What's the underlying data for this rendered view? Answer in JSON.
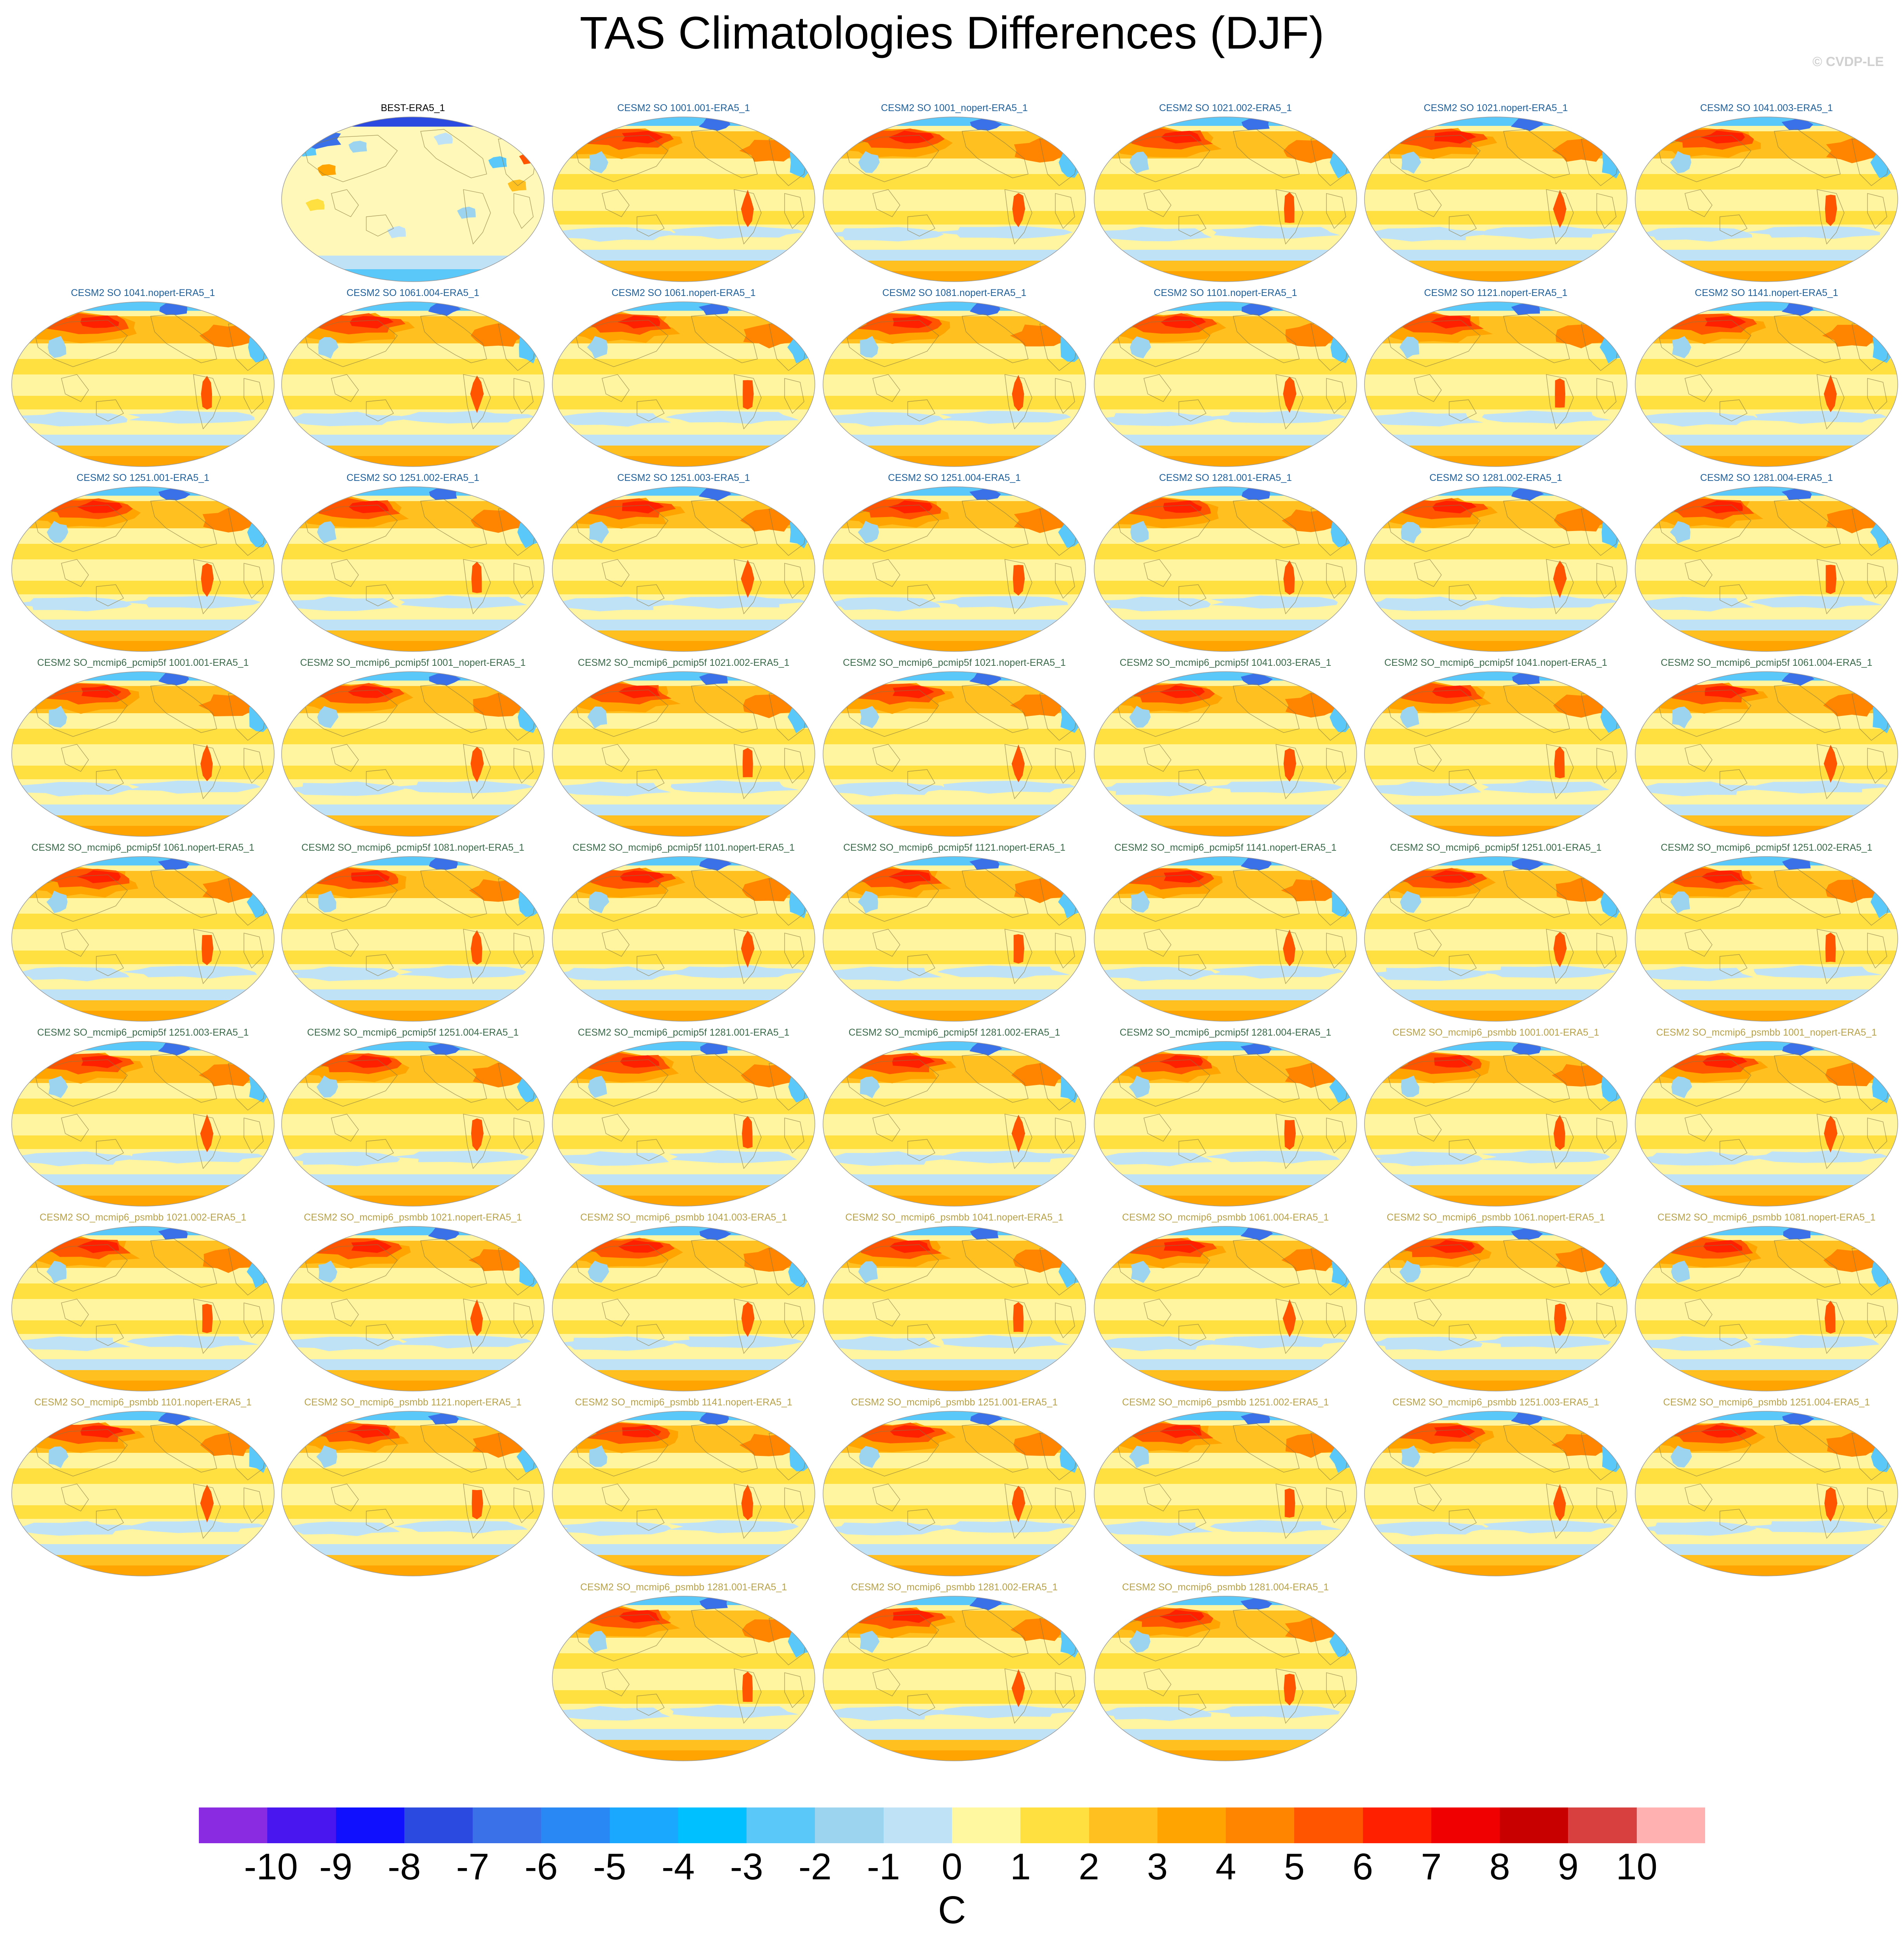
{
  "title": "TAS Climatologies Differences (DJF)",
  "credit": "© CVDP-LE",
  "colors": {
    "obs_title": "#000000",
    "group1_title": "#1f5f9a",
    "group2_title": "#3a6a4a",
    "group3_title": "#b7a24a",
    "ocean_base": "#fff5a0",
    "land_outline": "#8a7a40"
  },
  "panels": [
    {
      "title": "BEST-ERA5_1",
      "group": 0
    },
    {
      "title": "CESM2 SO 1001.001-ERA5_1",
      "group": 1
    },
    {
      "title": "CESM2 SO 1001_nopert-ERA5_1",
      "group": 1
    },
    {
      "title": "CESM2 SO 1021.002-ERA5_1",
      "group": 1
    },
    {
      "title": "CESM2 SO 1021.nopert-ERA5_1",
      "group": 1
    },
    {
      "title": "CESM2 SO 1041.003-ERA5_1",
      "group": 1
    },
    {
      "title": "CESM2 SO 1041.nopert-ERA5_1",
      "group": 1
    },
    {
      "title": "CESM2 SO 1061.004-ERA5_1",
      "group": 1
    },
    {
      "title": "CESM2 SO 1061.nopert-ERA5_1",
      "group": 1
    },
    {
      "title": "CESM2 SO 1081.nopert-ERA5_1",
      "group": 1
    },
    {
      "title": "CESM2 SO 1101.nopert-ERA5_1",
      "group": 1
    },
    {
      "title": "CESM2 SO 1121.nopert-ERA5_1",
      "group": 1
    },
    {
      "title": "CESM2 SO 1141.nopert-ERA5_1",
      "group": 1
    },
    {
      "title": "CESM2 SO 1251.001-ERA5_1",
      "group": 1
    },
    {
      "title": "CESM2 SO 1251.002-ERA5_1",
      "group": 1
    },
    {
      "title": "CESM2 SO 1251.003-ERA5_1",
      "group": 1
    },
    {
      "title": "CESM2 SO 1251.004-ERA5_1",
      "group": 1
    },
    {
      "title": "CESM2 SO 1281.001-ERA5_1",
      "group": 1
    },
    {
      "title": "CESM2 SO 1281.002-ERA5_1",
      "group": 1
    },
    {
      "title": "CESM2 SO 1281.004-ERA5_1",
      "group": 1
    },
    {
      "title": "CESM2 SO_mcmip6_pcmip5f 1001.001-ERA5_1",
      "group": 2
    },
    {
      "title": "CESM2 SO_mcmip6_pcmip5f 1001_nopert-ERA5_1",
      "group": 2
    },
    {
      "title": "CESM2 SO_mcmip6_pcmip5f 1021.002-ERA5_1",
      "group": 2
    },
    {
      "title": "CESM2 SO_mcmip6_pcmip5f 1021.nopert-ERA5_1",
      "group": 2
    },
    {
      "title": "CESM2 SO_mcmip6_pcmip5f 1041.003-ERA5_1",
      "group": 2
    },
    {
      "title": "CESM2 SO_mcmip6_pcmip5f 1041.nopert-ERA5_1",
      "group": 2
    },
    {
      "title": "CESM2 SO_mcmip6_pcmip5f 1061.004-ERA5_1",
      "group": 2
    },
    {
      "title": "CESM2 SO_mcmip6_pcmip5f 1061.nopert-ERA5_1",
      "group": 2
    },
    {
      "title": "CESM2 SO_mcmip6_pcmip5f 1081.nopert-ERA5_1",
      "group": 2
    },
    {
      "title": "CESM2 SO_mcmip6_pcmip5f 1101.nopert-ERA5_1",
      "group": 2
    },
    {
      "title": "CESM2 SO_mcmip6_pcmip5f 1121.nopert-ERA5_1",
      "group": 2
    },
    {
      "title": "CESM2 SO_mcmip6_pcmip5f 1141.nopert-ERA5_1",
      "group": 2
    },
    {
      "title": "CESM2 SO_mcmip6_pcmip5f 1251.001-ERA5_1",
      "group": 2
    },
    {
      "title": "CESM2 SO_mcmip6_pcmip5f 1251.002-ERA5_1",
      "group": 2
    },
    {
      "title": "CESM2 SO_mcmip6_pcmip5f 1251.003-ERA5_1",
      "group": 2
    },
    {
      "title": "CESM2 SO_mcmip6_pcmip5f 1251.004-ERA5_1",
      "group": 2
    },
    {
      "title": "CESM2 SO_mcmip6_pcmip5f 1281.001-ERA5_1",
      "group": 2
    },
    {
      "title": "CESM2 SO_mcmip6_pcmip5f 1281.002-ERA5_1",
      "group": 2
    },
    {
      "title": "CESM2 SO_mcmip6_pcmip5f 1281.004-ERA5_1",
      "group": 2
    },
    {
      "title": "CESM2 SO_mcmip6_psmbb 1001.001-ERA5_1",
      "group": 3
    },
    {
      "title": "CESM2 SO_mcmip6_psmbb 1001_nopert-ERA5_1",
      "group": 3
    },
    {
      "title": "CESM2 SO_mcmip6_psmbb 1021.002-ERA5_1",
      "group": 3
    },
    {
      "title": "CESM2 SO_mcmip6_psmbb 1021.nopert-ERA5_1",
      "group": 3
    },
    {
      "title": "CESM2 SO_mcmip6_psmbb 1041.003-ERA5_1",
      "group": 3
    },
    {
      "title": "CESM2 SO_mcmip6_psmbb 1041.nopert-ERA5_1",
      "group": 3
    },
    {
      "title": "CESM2 SO_mcmip6_psmbb 1061.004-ERA5_1",
      "group": 3
    },
    {
      "title": "CESM2 SO_mcmip6_psmbb 1061.nopert-ERA5_1",
      "group": 3
    },
    {
      "title": "CESM2 SO_mcmip6_psmbb 1081.nopert-ERA5_1",
      "group": 3
    },
    {
      "title": "CESM2 SO_mcmip6_psmbb 1101.nopert-ERA5_1",
      "group": 3
    },
    {
      "title": "CESM2 SO_mcmip6_psmbb 1121.nopert-ERA5_1",
      "group": 3
    },
    {
      "title": "CESM2 SO_mcmip6_psmbb 1141.nopert-ERA5_1",
      "group": 3
    },
    {
      "title": "CESM2 SO_mcmip6_psmbb 1251.001-ERA5_1",
      "group": 3
    },
    {
      "title": "CESM2 SO_mcmip6_psmbb 1251.002-ERA5_1",
      "group": 3
    },
    {
      "title": "CESM2 SO_mcmip6_psmbb 1251.003-ERA5_1",
      "group": 3
    },
    {
      "title": "CESM2 SO_mcmip6_psmbb 1251.004-ERA5_1",
      "group": 3
    },
    {
      "title": "CESM2 SO_mcmip6_psmbb 1281.001-ERA5_1",
      "group": 3
    },
    {
      "title": "CESM2 SO_mcmip6_psmbb 1281.002-ERA5_1",
      "group": 3
    },
    {
      "title": "CESM2 SO_mcmip6_psmbb 1281.004-ERA5_1",
      "group": 3
    }
  ],
  "colorbar": {
    "units": "C",
    "labels": [
      "-10",
      "-9",
      "-8",
      "-7",
      "-6",
      "-5",
      "-4",
      "-3",
      "-2",
      "-1",
      "0",
      "1",
      "2",
      "3",
      "4",
      "5",
      "6",
      "7",
      "8",
      "9",
      "10"
    ],
    "colors": [
      "#8a2be2",
      "#4a16f0",
      "#1010ff",
      "#2a4ae0",
      "#3a70e8",
      "#2a88f5",
      "#1aa8ff",
      "#00c0ff",
      "#5ac8f8",
      "#9cd4ef",
      "#bfe2f6",
      "#fff8a0",
      "#ffe040",
      "#ffc020",
      "#ffa400",
      "#ff8400",
      "#ff5400",
      "#ff2000",
      "#f00000",
      "#c80000",
      "#d84040",
      "#ffb0b0"
    ]
  }
}
